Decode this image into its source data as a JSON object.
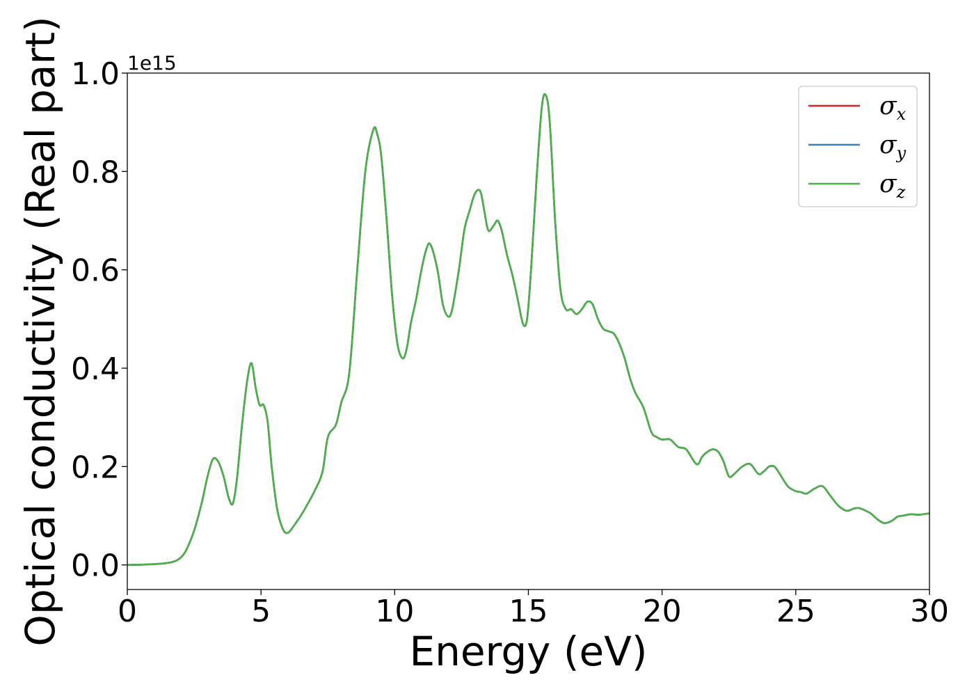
{
  "chart_data": {
    "type": "line",
    "title": "",
    "xlabel": "Energy (eV)",
    "ylabel": "Optical conductivity (Real part)",
    "y_offset_text": "1e15",
    "xlim": [
      0,
      30
    ],
    "ylim": [
      -0.05,
      1.0
    ],
    "y_multiplier": 1000000000000000.0,
    "xticks": [
      0,
      5,
      10,
      15,
      20,
      25,
      30
    ],
    "xtick_labels": [
      "0",
      "5",
      "10",
      "15",
      "20",
      "25",
      "30"
    ],
    "yticks": [
      0.0,
      0.2,
      0.4,
      0.6,
      0.8,
      1.0
    ],
    "ytick_labels": [
      "0.0",
      "0.2",
      "0.4",
      "0.6",
      "0.8",
      "1.0"
    ],
    "grid": false,
    "legend_position": "top-right",
    "x": [
      0,
      0.5,
      1.0,
      1.5,
      1.8,
      2.0,
      2.2,
      2.5,
      2.8,
      3.0,
      3.2,
      3.4,
      3.6,
      3.8,
      3.95,
      4.1,
      4.3,
      4.5,
      4.65,
      4.8,
      4.95,
      5.1,
      5.25,
      5.4,
      5.6,
      5.8,
      6.0,
      6.3,
      6.6,
      7.0,
      7.3,
      7.5,
      7.8,
      8.0,
      8.3,
      8.6,
      8.9,
      9.2,
      9.35,
      9.5,
      9.7,
      9.9,
      10.1,
      10.3,
      10.45,
      10.6,
      10.8,
      11.0,
      11.2,
      11.35,
      11.6,
      11.8,
      12.0,
      12.15,
      12.4,
      12.6,
      12.8,
      13.0,
      13.2,
      13.35,
      13.5,
      13.7,
      13.85,
      14.0,
      14.2,
      14.4,
      14.6,
      14.8,
      14.95,
      15.1,
      15.3,
      15.5,
      15.65,
      15.8,
      16.0,
      16.2,
      16.4,
      16.6,
      16.8,
      17.0,
      17.2,
      17.4,
      17.6,
      17.8,
      18.0,
      18.2,
      18.4,
      18.6,
      18.8,
      19.0,
      19.3,
      19.6,
      19.8,
      20.0,
      20.3,
      20.6,
      20.9,
      21.2,
      21.35,
      21.5,
      21.7,
      21.9,
      22.1,
      22.3,
      22.5,
      22.7,
      23.0,
      23.3,
      23.6,
      23.8,
      24.0,
      24.2,
      24.4,
      24.7,
      25.0,
      25.2,
      25.4,
      25.7,
      26.0,
      26.3,
      26.6,
      26.9,
      27.2,
      27.4,
      27.8,
      28.0,
      28.3,
      28.6,
      28.8,
      29.0,
      29.3,
      29.6,
      30.0
    ],
    "series": [
      {
        "name": "σx",
        "color": "#d62728",
        "values": [
          0,
          0.0005,
          0.0015,
          0.004,
          0.008,
          0.015,
          0.03,
          0.07,
          0.13,
          0.18,
          0.215,
          0.21,
          0.18,
          0.135,
          0.125,
          0.175,
          0.29,
          0.38,
          0.41,
          0.36,
          0.325,
          0.325,
          0.29,
          0.2,
          0.115,
          0.075,
          0.065,
          0.085,
          0.11,
          0.15,
          0.19,
          0.26,
          0.285,
          0.33,
          0.39,
          0.6,
          0.8,
          0.885,
          0.875,
          0.83,
          0.7,
          0.55,
          0.45,
          0.42,
          0.44,
          0.49,
          0.54,
          0.6,
          0.645,
          0.65,
          0.6,
          0.53,
          0.505,
          0.52,
          0.6,
          0.68,
          0.72,
          0.755,
          0.76,
          0.72,
          0.68,
          0.69,
          0.7,
          0.68,
          0.63,
          0.59,
          0.54,
          0.49,
          0.5,
          0.6,
          0.78,
          0.93,
          0.955,
          0.9,
          0.7,
          0.56,
          0.52,
          0.52,
          0.51,
          0.52,
          0.535,
          0.53,
          0.5,
          0.48,
          0.475,
          0.47,
          0.45,
          0.42,
          0.38,
          0.35,
          0.32,
          0.27,
          0.26,
          0.255,
          0.255,
          0.24,
          0.235,
          0.21,
          0.205,
          0.22,
          0.23,
          0.235,
          0.23,
          0.21,
          0.18,
          0.185,
          0.2,
          0.205,
          0.185,
          0.19,
          0.2,
          0.2,
          0.185,
          0.16,
          0.15,
          0.148,
          0.145,
          0.155,
          0.16,
          0.14,
          0.12,
          0.11,
          0.115,
          0.115,
          0.105,
          0.095,
          0.085,
          0.09,
          0.098,
          0.1,
          0.103,
          0.102,
          0.105
        ]
      },
      {
        "name": "σy",
        "color": "#3a7ebf",
        "values": [
          0,
          0.0005,
          0.0015,
          0.004,
          0.008,
          0.015,
          0.03,
          0.07,
          0.13,
          0.18,
          0.215,
          0.21,
          0.18,
          0.135,
          0.125,
          0.175,
          0.29,
          0.38,
          0.41,
          0.36,
          0.325,
          0.325,
          0.29,
          0.2,
          0.115,
          0.075,
          0.065,
          0.085,
          0.11,
          0.15,
          0.19,
          0.26,
          0.285,
          0.33,
          0.39,
          0.6,
          0.8,
          0.885,
          0.875,
          0.83,
          0.7,
          0.55,
          0.45,
          0.42,
          0.44,
          0.49,
          0.54,
          0.6,
          0.645,
          0.65,
          0.6,
          0.53,
          0.505,
          0.52,
          0.6,
          0.68,
          0.72,
          0.755,
          0.76,
          0.72,
          0.68,
          0.69,
          0.7,
          0.68,
          0.63,
          0.59,
          0.54,
          0.49,
          0.5,
          0.6,
          0.78,
          0.93,
          0.955,
          0.9,
          0.7,
          0.56,
          0.52,
          0.52,
          0.51,
          0.52,
          0.535,
          0.53,
          0.5,
          0.48,
          0.475,
          0.47,
          0.45,
          0.42,
          0.38,
          0.35,
          0.32,
          0.27,
          0.26,
          0.255,
          0.255,
          0.24,
          0.235,
          0.21,
          0.205,
          0.22,
          0.23,
          0.235,
          0.23,
          0.21,
          0.18,
          0.185,
          0.2,
          0.205,
          0.185,
          0.19,
          0.2,
          0.2,
          0.185,
          0.16,
          0.15,
          0.148,
          0.145,
          0.155,
          0.16,
          0.14,
          0.12,
          0.11,
          0.115,
          0.115,
          0.105,
          0.095,
          0.085,
          0.09,
          0.098,
          0.1,
          0.103,
          0.102,
          0.105
        ]
      },
      {
        "name": "σz",
        "color": "#4daf4a",
        "values": [
          0,
          0.0005,
          0.0015,
          0.004,
          0.008,
          0.015,
          0.03,
          0.07,
          0.13,
          0.18,
          0.215,
          0.21,
          0.18,
          0.135,
          0.125,
          0.175,
          0.29,
          0.38,
          0.41,
          0.36,
          0.325,
          0.325,
          0.29,
          0.2,
          0.115,
          0.075,
          0.065,
          0.085,
          0.11,
          0.15,
          0.19,
          0.26,
          0.285,
          0.33,
          0.39,
          0.6,
          0.8,
          0.885,
          0.875,
          0.83,
          0.7,
          0.55,
          0.45,
          0.42,
          0.44,
          0.49,
          0.54,
          0.6,
          0.645,
          0.65,
          0.6,
          0.53,
          0.505,
          0.52,
          0.6,
          0.68,
          0.72,
          0.755,
          0.76,
          0.72,
          0.68,
          0.69,
          0.7,
          0.68,
          0.63,
          0.59,
          0.54,
          0.49,
          0.5,
          0.6,
          0.78,
          0.93,
          0.955,
          0.9,
          0.7,
          0.56,
          0.52,
          0.52,
          0.51,
          0.52,
          0.535,
          0.53,
          0.5,
          0.48,
          0.475,
          0.47,
          0.45,
          0.42,
          0.38,
          0.35,
          0.32,
          0.27,
          0.26,
          0.255,
          0.255,
          0.24,
          0.235,
          0.21,
          0.205,
          0.22,
          0.23,
          0.235,
          0.23,
          0.21,
          0.18,
          0.185,
          0.2,
          0.205,
          0.185,
          0.19,
          0.2,
          0.2,
          0.185,
          0.16,
          0.15,
          0.148,
          0.145,
          0.155,
          0.16,
          0.14,
          0.12,
          0.11,
          0.115,
          0.115,
          0.105,
          0.095,
          0.085,
          0.09,
          0.098,
          0.1,
          0.103,
          0.102,
          0.105
        ]
      }
    ],
    "legend": [
      {
        "symbol": "σ",
        "sub": "x",
        "color": "#d62728"
      },
      {
        "symbol": "σ",
        "sub": "y",
        "color": "#3a7ebf"
      },
      {
        "symbol": "σ",
        "sub": "z",
        "color": "#4daf4a"
      }
    ]
  }
}
